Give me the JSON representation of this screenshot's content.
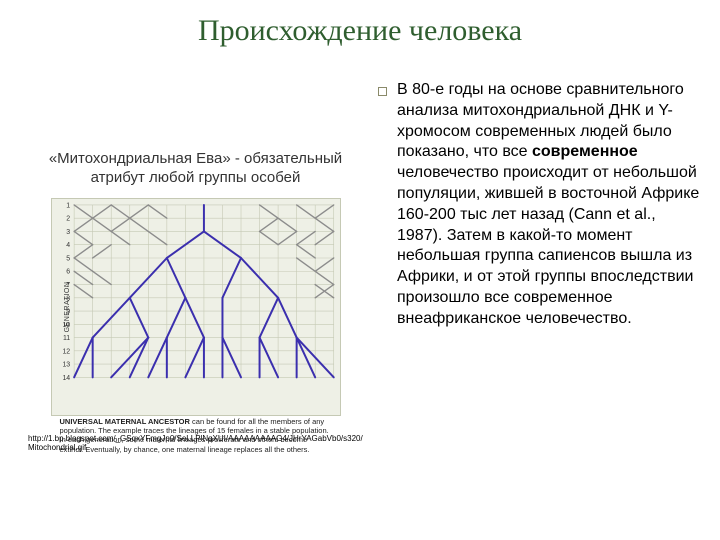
{
  "title": "Происхождение человека",
  "subtitle": "«Митохондриальная Ева» - обязательный атрибут любой группы особей",
  "diagram": {
    "background_color": "#eef0e6",
    "grid_color": "#c5c9b4",
    "line_color_extinct": "#8c8c8c",
    "line_color_surviving": "#3b2fae",
    "y_axis_label": "GENERATION",
    "y_labels": [
      "1",
      "2",
      "3",
      "4",
      "5",
      "6",
      "7",
      "8",
      "9",
      "10",
      "11",
      "12",
      "13",
      "14"
    ],
    "caption_bold": "UNIVERSAL MATERNAL ANCESTOR",
    "caption_rest": " can be found for all the members of any population. The example traces the lineages of 15 females in a stable population. In each generation, some maternal lineages proliferate and others become extinct. Eventually, by chance, one maternal lineage replaces all the others."
  },
  "source_url": "http://1.bp.blogspot.com/_GSqxYFmgJp0/SeLLPlNqXUI/AAAAAAAAAG4/JHrYAGabVb0/s320/Mitochondrial.gif",
  "body_pre": "В 80-е годы на основе сравнительного анализа митохондриальной ДНК и Y-хромосом современных людей было показано, что все ",
  "body_bold": "современное",
  "body_post": " человечество происходит от небольшой популяции, жившей в восточной Африке 160-200 тыс лет назад (Cann et al., 1987). Затем в какой-то момент небольшая группа сапиенсов вышла из Африки, и от этой группы впоследствии произошло все современное внеафриканское человечество.",
  "colors": {
    "title": "#2f5e2f",
    "text": "#000000",
    "background": "#ffffff"
  }
}
